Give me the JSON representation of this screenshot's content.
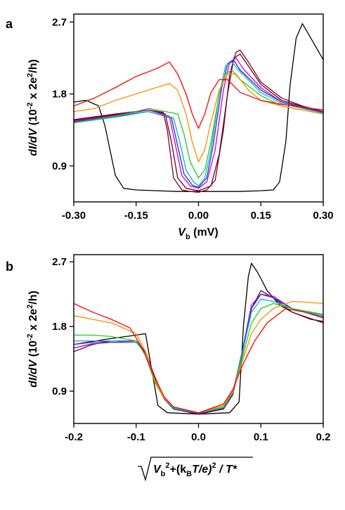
{
  "chart_data": [
    {
      "panel": "a",
      "type": "line",
      "xlabel_var": "V",
      "xlabel_sub": "b",
      "xlabel_unit": " (mV)",
      "ylabel_main": "dI/dV",
      "ylabel_unit_pre": " (10",
      "ylabel_unit_exp": "-2",
      "ylabel_unit_post": " x 2e",
      "ylabel_unit_exp2": "2",
      "ylabel_unit_end": "/h)",
      "xlim": [
        -0.3,
        0.3
      ],
      "ylim": [
        0.45,
        2.8
      ],
      "xticks": [
        -0.3,
        -0.15,
        0.0,
        0.15,
        0.3
      ],
      "xtick_labels": [
        "-0.30",
        "-0.15",
        "0.00",
        "0.15",
        "0.30"
      ],
      "yticks": [
        0.9,
        1.8,
        2.7
      ],
      "ytick_labels": [
        "0.9",
        "1.8",
        "2.7"
      ],
      "series": [
        {
          "color": "#000000",
          "x": [
            -0.3,
            -0.27,
            -0.24,
            -0.225,
            -0.2,
            -0.18,
            -0.15,
            -0.1,
            -0.05,
            0.0,
            0.05,
            0.1,
            0.15,
            0.18,
            0.195,
            0.21,
            0.22,
            0.235,
            0.25,
            0.27,
            0.3
          ],
          "y": [
            1.7,
            1.72,
            1.65,
            1.4,
            0.78,
            0.62,
            0.6,
            0.59,
            0.58,
            0.58,
            0.58,
            0.58,
            0.59,
            0.6,
            0.7,
            1.2,
            1.9,
            2.5,
            2.68,
            2.5,
            2.23
          ]
        },
        {
          "color": "#800020",
          "x": [
            -0.3,
            -0.2,
            -0.12,
            -0.085,
            -0.075,
            -0.06,
            -0.04,
            -0.02,
            0.0,
            0.02,
            0.04,
            0.06,
            0.075,
            0.09,
            0.1,
            0.12,
            0.15,
            0.2,
            0.25,
            0.3
          ],
          "y": [
            1.48,
            1.55,
            1.6,
            1.57,
            1.35,
            0.75,
            0.6,
            0.58,
            0.57,
            0.6,
            0.72,
            1.35,
            2.05,
            2.32,
            2.35,
            2.2,
            1.95,
            1.75,
            1.65,
            1.58
          ]
        },
        {
          "color": "#600030",
          "x": [
            -0.3,
            -0.2,
            -0.12,
            -0.08,
            -0.065,
            -0.05,
            -0.03,
            0.0,
            0.03,
            0.05,
            0.07,
            0.085,
            0.1,
            0.12,
            0.15,
            0.2,
            0.3
          ],
          "y": [
            1.47,
            1.54,
            1.6,
            1.55,
            1.2,
            0.75,
            0.62,
            0.59,
            0.65,
            1.05,
            1.8,
            2.25,
            2.3,
            2.15,
            1.92,
            1.72,
            1.57
          ]
        },
        {
          "color": "#cc00cc",
          "x": [
            -0.3,
            -0.2,
            -0.12,
            -0.07,
            -0.055,
            -0.04,
            -0.02,
            0.0,
            0.02,
            0.04,
            0.06,
            0.075,
            0.09,
            0.11,
            0.15,
            0.2,
            0.3
          ],
          "y": [
            1.46,
            1.53,
            1.6,
            1.52,
            1.15,
            0.78,
            0.65,
            0.62,
            0.7,
            1.1,
            1.85,
            2.2,
            2.25,
            2.1,
            1.88,
            1.7,
            1.57
          ]
        },
        {
          "color": "#2a2ad8",
          "x": [
            -0.3,
            -0.2,
            -0.12,
            -0.065,
            -0.05,
            -0.035,
            -0.015,
            0.0,
            0.02,
            0.035,
            0.055,
            0.07,
            0.085,
            0.1,
            0.15,
            0.2,
            0.3
          ],
          "y": [
            1.45,
            1.52,
            1.58,
            1.5,
            1.15,
            0.8,
            0.66,
            0.63,
            0.75,
            1.15,
            1.85,
            2.18,
            2.22,
            2.1,
            1.85,
            1.7,
            1.56
          ]
        },
        {
          "color": "#00b8b8",
          "x": [
            -0.3,
            -0.2,
            -0.12,
            -0.06,
            -0.045,
            -0.03,
            -0.012,
            0.0,
            0.015,
            0.03,
            0.05,
            0.065,
            0.08,
            0.1,
            0.15,
            0.2,
            0.3
          ],
          "y": [
            1.44,
            1.51,
            1.58,
            1.5,
            1.2,
            0.85,
            0.7,
            0.65,
            0.75,
            1.1,
            1.8,
            2.15,
            2.2,
            2.08,
            1.82,
            1.68,
            1.56
          ]
        },
        {
          "color": "#22cc22",
          "x": [
            -0.3,
            -0.2,
            -0.12,
            -0.05,
            -0.035,
            -0.02,
            0.0,
            0.015,
            0.03,
            0.05,
            0.065,
            0.08,
            0.1,
            0.15,
            0.2,
            0.3
          ],
          "y": [
            1.44,
            1.52,
            1.62,
            1.55,
            1.3,
            0.95,
            0.75,
            0.85,
            1.2,
            1.8,
            2.05,
            2.1,
            1.98,
            1.78,
            1.65,
            1.55
          ]
        },
        {
          "color": "#ff8c00",
          "x": [
            -0.3,
            -0.25,
            -0.2,
            -0.12,
            -0.07,
            -0.05,
            -0.03,
            -0.015,
            0.0,
            0.015,
            0.03,
            0.05,
            0.07,
            0.09,
            0.12,
            0.15,
            0.2,
            0.3
          ],
          "y": [
            1.58,
            1.62,
            1.72,
            1.85,
            1.93,
            1.85,
            1.55,
            1.2,
            0.95,
            1.1,
            1.45,
            1.85,
            2.05,
            2.05,
            1.85,
            1.72,
            1.65,
            1.55
          ]
        },
        {
          "color": "#ff0000",
          "x": [
            -0.3,
            -0.25,
            -0.2,
            -0.15,
            -0.1,
            -0.07,
            -0.05,
            -0.03,
            -0.015,
            0.0,
            0.015,
            0.03,
            0.05,
            0.07,
            0.1,
            0.15,
            0.2,
            0.3
          ],
          "y": [
            1.65,
            1.75,
            1.88,
            2.02,
            2.12,
            2.2,
            2.05,
            1.8,
            1.55,
            1.37,
            1.55,
            1.82,
            1.98,
            1.98,
            1.82,
            1.72,
            1.67,
            1.6
          ]
        }
      ]
    },
    {
      "panel": "b",
      "type": "line",
      "xlabel_parts": [
        "V",
        "b",
        "2",
        "+(k",
        "B",
        "T/e)",
        "2",
        " / T*"
      ],
      "ylabel_main": "dI/dV",
      "ylabel_unit_pre": " (10",
      "ylabel_unit_exp": "-2",
      "ylabel_unit_post": " x 2e",
      "ylabel_unit_exp2": "2",
      "ylabel_unit_end": "/h)",
      "xlim": [
        -0.2,
        0.2
      ],
      "ylim": [
        0.45,
        2.8
      ],
      "xticks": [
        -0.2,
        -0.1,
        0.0,
        0.1,
        0.2
      ],
      "xtick_labels": [
        "-0.2",
        "-0.1",
        "0.0",
        "0.1",
        "0.2"
      ],
      "yticks": [
        0.9,
        1.8,
        2.7
      ],
      "ytick_labels": [
        "0.9",
        "1.8",
        "2.7"
      ],
      "series": [
        {
          "color": "#000000",
          "x": [
            -0.2,
            -0.15,
            -0.1,
            -0.085,
            -0.075,
            -0.065,
            -0.05,
            0.0,
            0.05,
            0.065,
            0.072,
            0.08,
            0.085,
            0.095,
            0.11,
            0.13,
            0.15,
            0.18,
            0.2
          ],
          "y": [
            1.55,
            1.62,
            1.68,
            1.7,
            1.2,
            0.7,
            0.6,
            0.58,
            0.6,
            0.75,
            1.8,
            2.5,
            2.68,
            2.55,
            2.3,
            2.1,
            2.0,
            1.9,
            1.87
          ]
        },
        {
          "color": "#800020",
          "x": [
            -0.2,
            -0.17,
            -0.14,
            -0.1,
            -0.085,
            -0.07,
            -0.055,
            -0.04,
            0.0,
            0.04,
            0.055,
            0.07,
            0.085,
            0.1,
            0.12,
            0.15,
            0.2
          ],
          "y": [
            1.45,
            1.55,
            1.6,
            1.6,
            1.45,
            1.1,
            0.8,
            0.65,
            0.58,
            0.65,
            0.85,
            1.4,
            2.05,
            2.3,
            2.2,
            2.0,
            1.85
          ]
        },
        {
          "color": "#cc00cc",
          "x": [
            -0.2,
            -0.17,
            -0.14,
            -0.1,
            -0.085,
            -0.07,
            -0.055,
            -0.04,
            0.0,
            0.04,
            0.055,
            0.07,
            0.085,
            0.1,
            0.12,
            0.15,
            0.2
          ],
          "y": [
            1.55,
            1.58,
            1.6,
            1.6,
            1.45,
            1.08,
            0.8,
            0.66,
            0.59,
            0.66,
            0.88,
            1.45,
            2.1,
            2.25,
            2.22,
            2.05,
            1.95
          ]
        },
        {
          "color": "#2a2ad8",
          "x": [
            -0.2,
            -0.17,
            -0.14,
            -0.1,
            -0.085,
            -0.07,
            -0.055,
            -0.04,
            0.0,
            0.04,
            0.055,
            0.07,
            0.085,
            0.1,
            0.12,
            0.15,
            0.2
          ],
          "y": [
            1.5,
            1.56,
            1.58,
            1.58,
            1.44,
            1.07,
            0.79,
            0.65,
            0.59,
            0.66,
            0.86,
            1.43,
            2.05,
            2.25,
            2.2,
            2.05,
            1.93
          ]
        },
        {
          "color": "#00b8b8",
          "x": [
            -0.2,
            -0.17,
            -0.14,
            -0.1,
            -0.085,
            -0.07,
            -0.055,
            -0.04,
            0.0,
            0.04,
            0.055,
            0.07,
            0.085,
            0.1,
            0.12,
            0.15,
            0.2
          ],
          "y": [
            1.6,
            1.6,
            1.6,
            1.58,
            1.42,
            1.05,
            0.8,
            0.66,
            0.6,
            0.67,
            0.88,
            1.42,
            2.0,
            2.18,
            2.15,
            2.05,
            1.95
          ]
        },
        {
          "color": "#22cc22",
          "x": [
            -0.2,
            -0.17,
            -0.14,
            -0.1,
            -0.085,
            -0.07,
            -0.055,
            -0.04,
            0.0,
            0.04,
            0.055,
            0.07,
            0.085,
            0.1,
            0.12,
            0.15,
            0.2
          ],
          "y": [
            1.68,
            1.68,
            1.66,
            1.6,
            1.4,
            1.02,
            0.8,
            0.67,
            0.6,
            0.68,
            0.88,
            1.35,
            1.85,
            2.05,
            2.12,
            2.05,
            1.97
          ]
        },
        {
          "color": "#ff8c00",
          "x": [
            -0.2,
            -0.17,
            -0.14,
            -0.1,
            -0.085,
            -0.07,
            -0.055,
            -0.04,
            0.0,
            0.04,
            0.055,
            0.07,
            0.085,
            0.1,
            0.12,
            0.15,
            0.2
          ],
          "y": [
            1.95,
            1.9,
            1.85,
            1.7,
            1.45,
            1.05,
            0.8,
            0.68,
            0.6,
            0.7,
            0.9,
            1.3,
            1.7,
            1.9,
            2.05,
            2.15,
            2.12
          ]
        },
        {
          "color": "#ff0000",
          "x": [
            -0.2,
            -0.17,
            -0.14,
            -0.11,
            -0.09,
            -0.07,
            -0.055,
            -0.04,
            0.0,
            0.04,
            0.055,
            0.07,
            0.09,
            0.11,
            0.14,
            0.17,
            0.2
          ],
          "y": [
            2.12,
            2.0,
            1.9,
            1.78,
            1.5,
            1.08,
            0.82,
            0.68,
            0.6,
            0.72,
            0.92,
            1.25,
            1.6,
            1.85,
            2.05,
            2.0,
            1.92
          ]
        }
      ]
    }
  ],
  "panels": {
    "a": {
      "letter": "a"
    },
    "b": {
      "letter": "b"
    }
  }
}
